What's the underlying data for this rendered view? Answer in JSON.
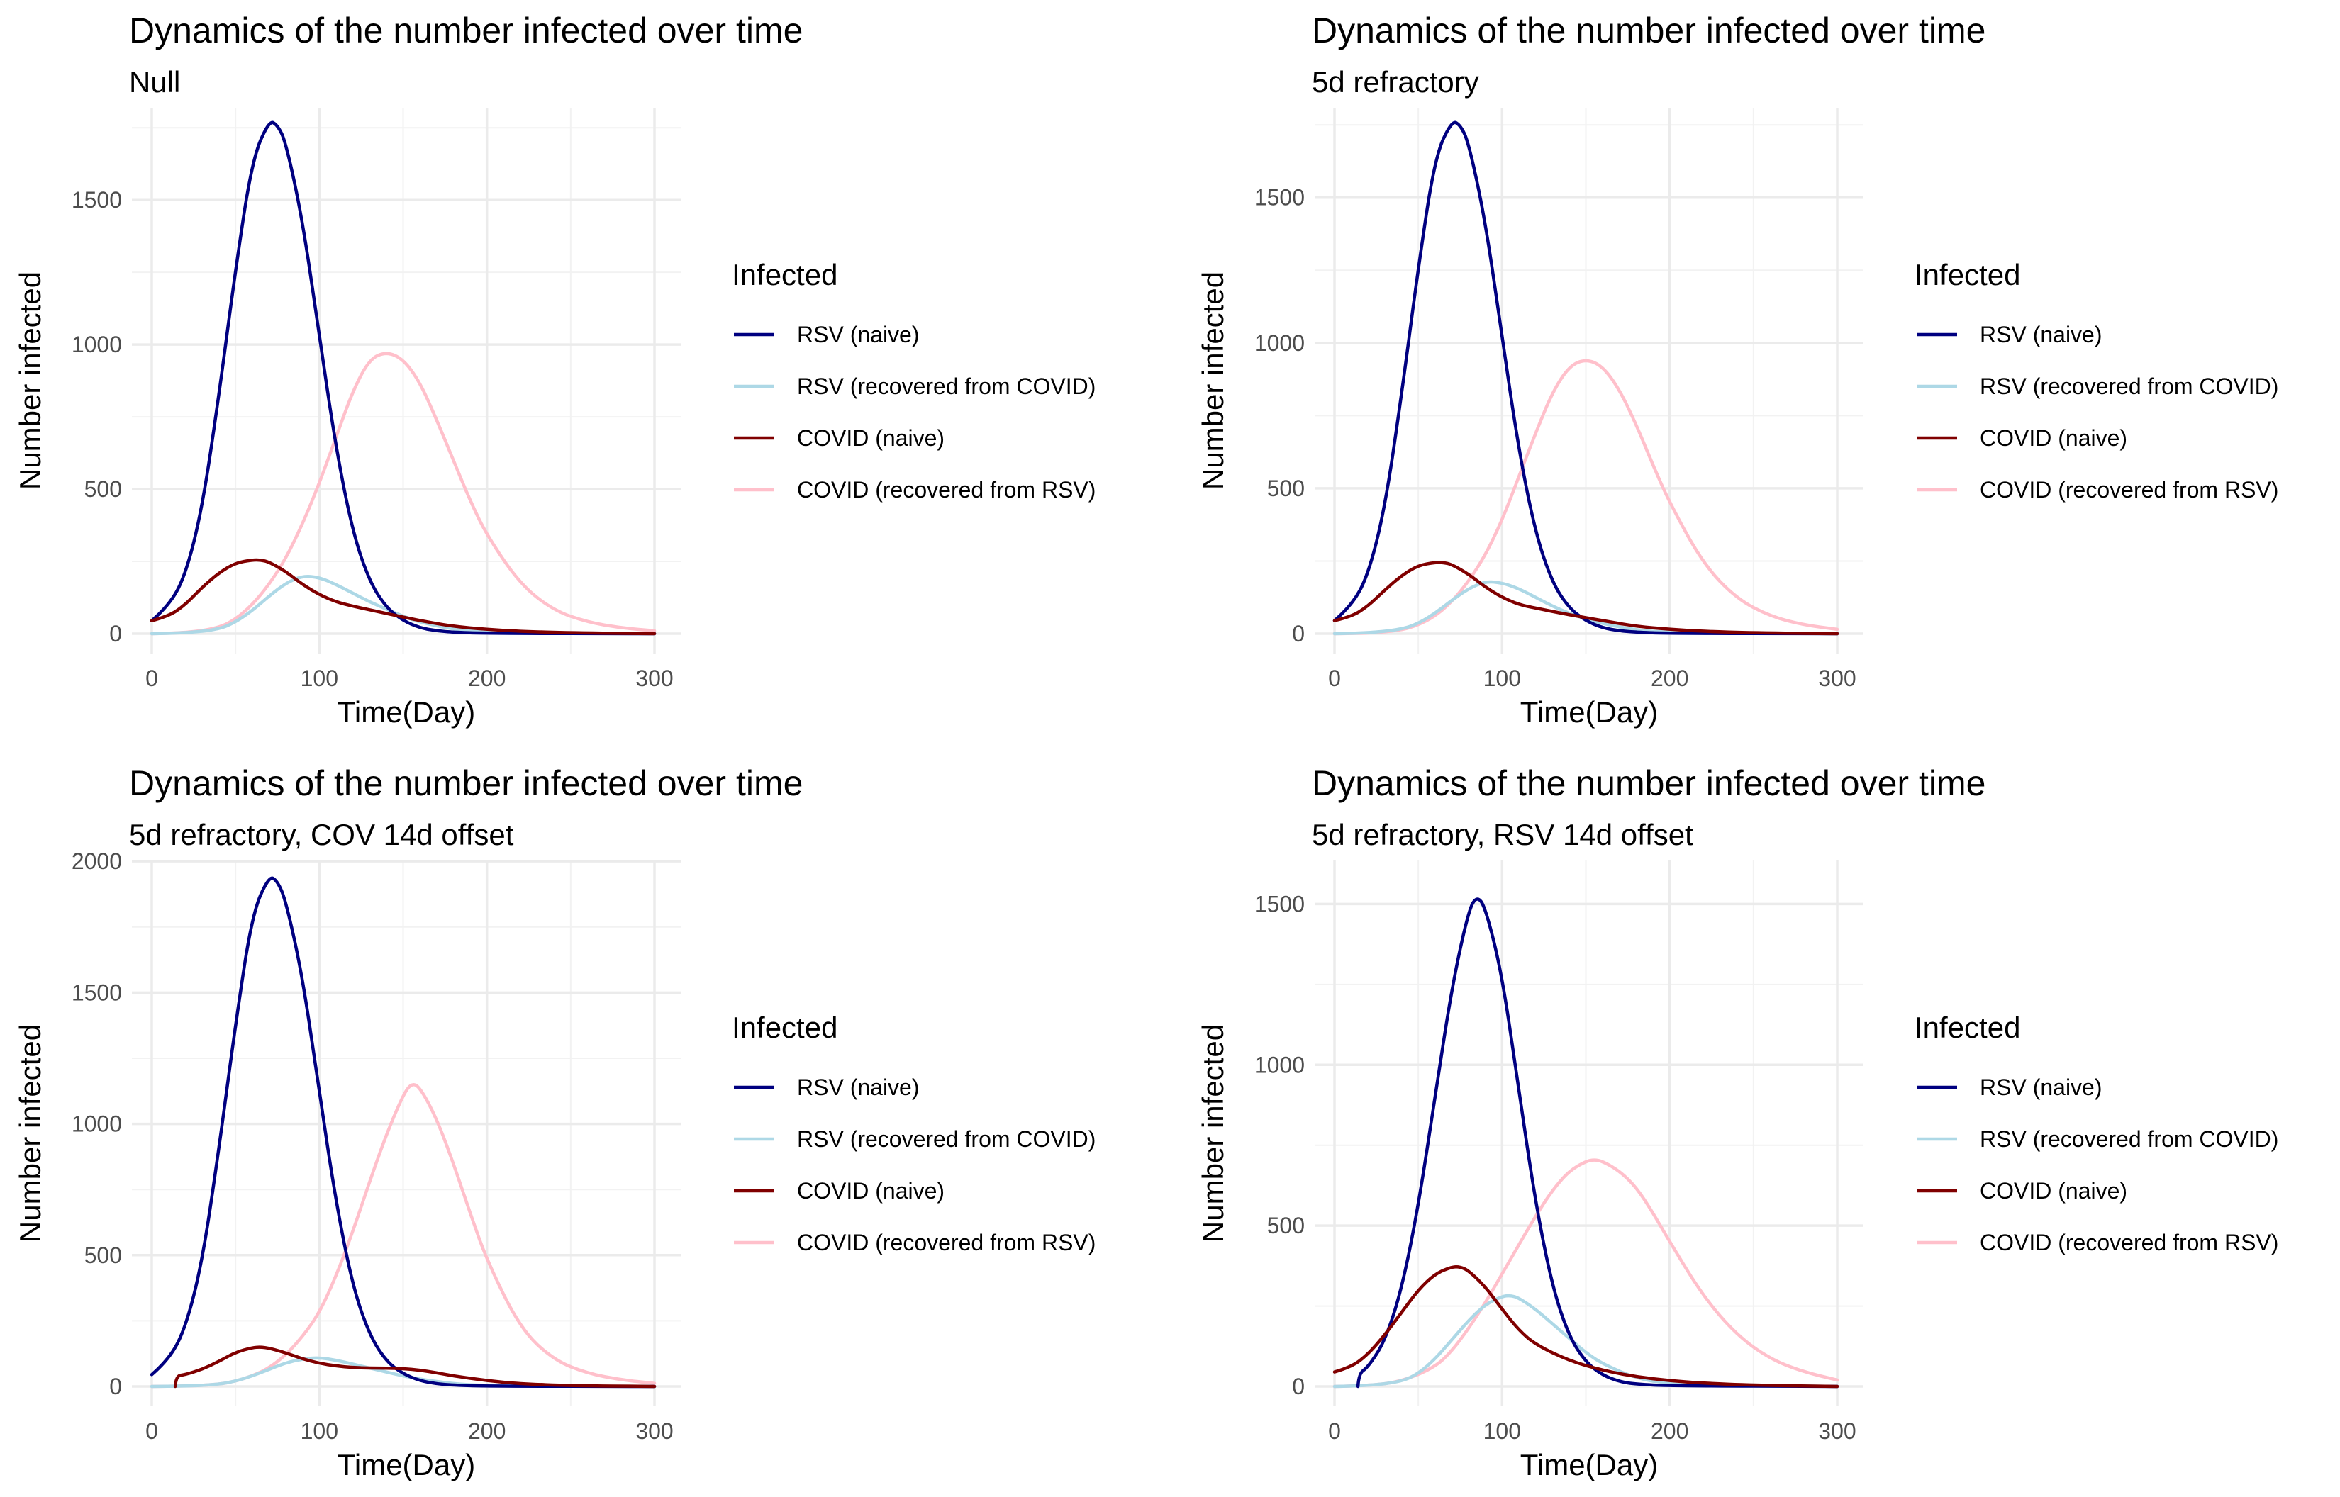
{
  "chart_data": [
    {
      "type": "line",
      "title": "Dynamics of the number infected over time",
      "subtitle": "Null",
      "xlabel": "Time(Day)",
      "ylabel": "Number infected",
      "xlim": [
        0,
        300
      ],
      "ylim": [
        0,
        1780
      ],
      "xticks": [
        0,
        100,
        200,
        300
      ],
      "yticks": [
        0,
        500,
        1000,
        1500
      ],
      "legend_title": "Infected",
      "legend_position": "right",
      "grid": true,
      "series": [
        {
          "name": "RSV (naive)",
          "color": "#000080",
          "x": [
            0,
            10,
            20,
            30,
            40,
            50,
            60,
            70,
            75,
            80,
            90,
            100,
            110,
            120,
            130,
            140,
            150,
            160,
            170,
            180,
            200,
            300
          ],
          "y": [
            45,
            95,
            200,
            430,
            820,
            1260,
            1640,
            1775,
            1760,
            1700,
            1430,
            1030,
            640,
            350,
            180,
            90,
            45,
            20,
            10,
            5,
            1,
            0
          ]
        },
        {
          "name": "RSV (recovered from COVID)",
          "color": "#add8e6",
          "x": [
            0,
            20,
            40,
            50,
            60,
            70,
            80,
            90,
            100,
            110,
            120,
            130,
            140,
            150,
            160,
            180,
            200,
            300
          ],
          "y": [
            0,
            2,
            15,
            40,
            80,
            130,
            175,
            200,
            195,
            170,
            140,
            110,
            85,
            60,
            40,
            15,
            5,
            0
          ]
        },
        {
          "name": "COVID (naive)",
          "color": "#800000",
          "x": [
            0,
            10,
            20,
            30,
            40,
            50,
            60,
            65,
            70,
            80,
            90,
            100,
            110,
            120,
            140,
            160,
            180,
            200,
            220,
            250,
            300
          ],
          "y": [
            45,
            60,
            100,
            160,
            210,
            245,
            255,
            255,
            248,
            215,
            170,
            135,
            110,
            95,
            70,
            45,
            25,
            15,
            8,
            3,
            0
          ]
        },
        {
          "name": "COVID (recovered from RSV)",
          "color": "#ffc0cb",
          "x": [
            0,
            20,
            40,
            50,
            60,
            70,
            80,
            90,
            100,
            110,
            120,
            130,
            140,
            150,
            160,
            170,
            180,
            190,
            200,
            220,
            240,
            260,
            280,
            300
          ],
          "y": [
            0,
            2,
            20,
            50,
            100,
            170,
            260,
            380,
            520,
            680,
            840,
            950,
            975,
            950,
            870,
            740,
            600,
            460,
            340,
            170,
            80,
            40,
            20,
            10
          ]
        }
      ]
    },
    {
      "type": "line",
      "title": "Dynamics of the number infected over time",
      "subtitle": "5d refractory",
      "xlabel": "Time(Day)",
      "ylabel": "Number infected",
      "xlim": [
        0,
        300
      ],
      "ylim": [
        0,
        1770
      ],
      "xticks": [
        0,
        100,
        200,
        300
      ],
      "yticks": [
        0,
        500,
        1000,
        1500
      ],
      "legend_title": "Infected",
      "legend_position": "right",
      "grid": true,
      "series": [
        {
          "name": "RSV (naive)",
          "color": "#000080",
          "x": [
            0,
            10,
            20,
            30,
            40,
            50,
            60,
            70,
            75,
            80,
            90,
            100,
            110,
            120,
            130,
            140,
            150,
            160,
            170,
            180,
            200,
            300
          ],
          "y": [
            45,
            95,
            200,
            430,
            820,
            1260,
            1640,
            1765,
            1750,
            1690,
            1420,
            1020,
            630,
            345,
            175,
            88,
            44,
            20,
            10,
            5,
            1,
            0
          ]
        },
        {
          "name": "RSV (recovered from COVID)",
          "color": "#add8e6",
          "x": [
            0,
            20,
            40,
            50,
            60,
            70,
            80,
            90,
            100,
            110,
            120,
            130,
            140,
            150,
            160,
            180,
            200,
            300
          ],
          "y": [
            0,
            2,
            15,
            35,
            70,
            115,
            155,
            180,
            175,
            155,
            125,
            95,
            70,
            50,
            35,
            12,
            4,
            0
          ]
        },
        {
          "name": "COVID (naive)",
          "color": "#800000",
          "x": [
            0,
            10,
            20,
            30,
            40,
            50,
            60,
            65,
            70,
            80,
            90,
            100,
            110,
            120,
            140,
            160,
            180,
            200,
            220,
            250,
            300
          ],
          "y": [
            45,
            58,
            95,
            150,
            200,
            235,
            245,
            245,
            238,
            205,
            160,
            125,
            100,
            88,
            65,
            45,
            25,
            15,
            8,
            3,
            0
          ]
        },
        {
          "name": "COVID (recovered from RSV)",
          "color": "#ffc0cb",
          "x": [
            0,
            20,
            40,
            50,
            60,
            70,
            80,
            90,
            100,
            110,
            120,
            130,
            140,
            150,
            160,
            170,
            180,
            190,
            200,
            220,
            240,
            260,
            280,
            300
          ],
          "y": [
            0,
            1,
            12,
            30,
            60,
            110,
            180,
            270,
            390,
            540,
            690,
            830,
            920,
            945,
            920,
            840,
            720,
            580,
            450,
            240,
            120,
            60,
            30,
            15
          ]
        }
      ]
    },
    {
      "type": "line",
      "title": "Dynamics of the number infected over time",
      "subtitle": "5d refractory, COV 14d offset",
      "xlabel": "Time(Day)",
      "ylabel": "Number infected",
      "xlim": [
        0,
        300
      ],
      "ylim": [
        0,
        1960
      ],
      "xticks": [
        0,
        100,
        200,
        300
      ],
      "yticks": [
        0,
        500,
        1000,
        1500,
        2000
      ],
      "legend_title": "Infected",
      "legend_position": "right",
      "grid": true,
      "series": [
        {
          "name": "RSV (naive)",
          "color": "#000080",
          "x": [
            0,
            10,
            20,
            30,
            40,
            50,
            60,
            70,
            75,
            80,
            90,
            100,
            110,
            120,
            130,
            140,
            150,
            160,
            170,
            180,
            200,
            300
          ],
          "y": [
            45,
            100,
            220,
            470,
            900,
            1380,
            1800,
            1945,
            1925,
            1850,
            1560,
            1120,
            700,
            380,
            195,
            95,
            48,
            22,
            10,
            5,
            1,
            0
          ]
        },
        {
          "name": "RSV (recovered from COVID)",
          "color": "#add8e6",
          "x": [
            0,
            20,
            40,
            50,
            60,
            70,
            80,
            90,
            100,
            110,
            120,
            130,
            140,
            150,
            160,
            180,
            200,
            300
          ],
          "y": [
            0,
            1,
            8,
            20,
            40,
            65,
            90,
            105,
            110,
            100,
            85,
            70,
            55,
            40,
            28,
            10,
            3,
            0
          ]
        },
        {
          "name": "COVID (naive)",
          "color": "#800000",
          "x": [
            14,
            14.5,
            20,
            30,
            40,
            50,
            60,
            65,
            70,
            80,
            90,
            100,
            110,
            120,
            130,
            140,
            150,
            160,
            170,
            180,
            200,
            220,
            250,
            300
          ],
          "y": [
            0,
            40,
            45,
            65,
            95,
            130,
            148,
            150,
            146,
            128,
            105,
            88,
            78,
            72,
            70,
            70,
            68,
            62,
            52,
            40,
            22,
            10,
            3,
            0
          ]
        },
        {
          "name": "COVID (recovered from RSV)",
          "color": "#ffc0cb",
          "x": [
            0,
            20,
            40,
            50,
            60,
            70,
            80,
            90,
            100,
            110,
            120,
            130,
            140,
            150,
            155,
            160,
            170,
            180,
            190,
            200,
            220,
            240,
            260,
            280,
            300
          ],
          "y": [
            0,
            1,
            8,
            20,
            40,
            70,
            120,
            190,
            280,
            420,
            590,
            780,
            960,
            1110,
            1155,
            1140,
            1020,
            850,
            660,
            480,
            220,
            100,
            50,
            25,
            12
          ]
        }
      ]
    },
    {
      "type": "line",
      "title": "Dynamics of the number infected over time",
      "subtitle": "5d refractory, RSV 14d offset",
      "xlabel": "Time(Day)",
      "ylabel": "Number infected",
      "xlim": [
        0,
        300
      ],
      "ylim": [
        0,
        1600
      ],
      "xticks": [
        0,
        100,
        200,
        300
      ],
      "yticks": [
        0,
        500,
        1000,
        1500
      ],
      "legend_title": "Infected",
      "legend_position": "right",
      "grid": true,
      "series": [
        {
          "name": "RSV (naive)",
          "color": "#000080",
          "x": [
            14,
            14.5,
            20,
            30,
            40,
            50,
            60,
            70,
            80,
            85,
            90,
            100,
            110,
            120,
            130,
            140,
            150,
            160,
            170,
            180,
            200,
            300
          ],
          "y": [
            0,
            40,
            60,
            140,
            300,
            560,
            900,
            1240,
            1480,
            1525,
            1490,
            1280,
            920,
            570,
            310,
            155,
            75,
            35,
            15,
            7,
            2,
            0
          ]
        },
        {
          "name": "RSV (recovered from COVID)",
          "color": "#add8e6",
          "x": [
            0,
            20,
            40,
            50,
            60,
            70,
            80,
            90,
            100,
            105,
            110,
            120,
            130,
            140,
            150,
            160,
            180,
            200,
            300
          ],
          "y": [
            0,
            2,
            15,
            40,
            85,
            145,
            205,
            255,
            280,
            283,
            275,
            240,
            195,
            150,
            105,
            70,
            25,
            8,
            0
          ]
        },
        {
          "name": "COVID (naive)",
          "color": "#800000",
          "x": [
            0,
            10,
            20,
            30,
            40,
            50,
            60,
            70,
            75,
            80,
            90,
            100,
            110,
            120,
            140,
            160,
            180,
            200,
            220,
            250,
            300
          ],
          "y": [
            45,
            60,
            100,
            160,
            230,
            300,
            350,
            372,
            372,
            360,
            310,
            240,
            175,
            130,
            80,
            50,
            30,
            18,
            10,
            4,
            0
          ]
        },
        {
          "name": "COVID (recovered from RSV)",
          "color": "#ffc0cb",
          "x": [
            0,
            20,
            40,
            60,
            70,
            80,
            90,
            100,
            110,
            120,
            130,
            140,
            150,
            155,
            160,
            170,
            180,
            190,
            200,
            220,
            240,
            260,
            280,
            300
          ],
          "y": [
            0,
            2,
            15,
            60,
            110,
            180,
            260,
            350,
            440,
            530,
            610,
            670,
            700,
            705,
            700,
            670,
            620,
            540,
            450,
            280,
            160,
            85,
            45,
            20
          ]
        }
      ]
    }
  ]
}
